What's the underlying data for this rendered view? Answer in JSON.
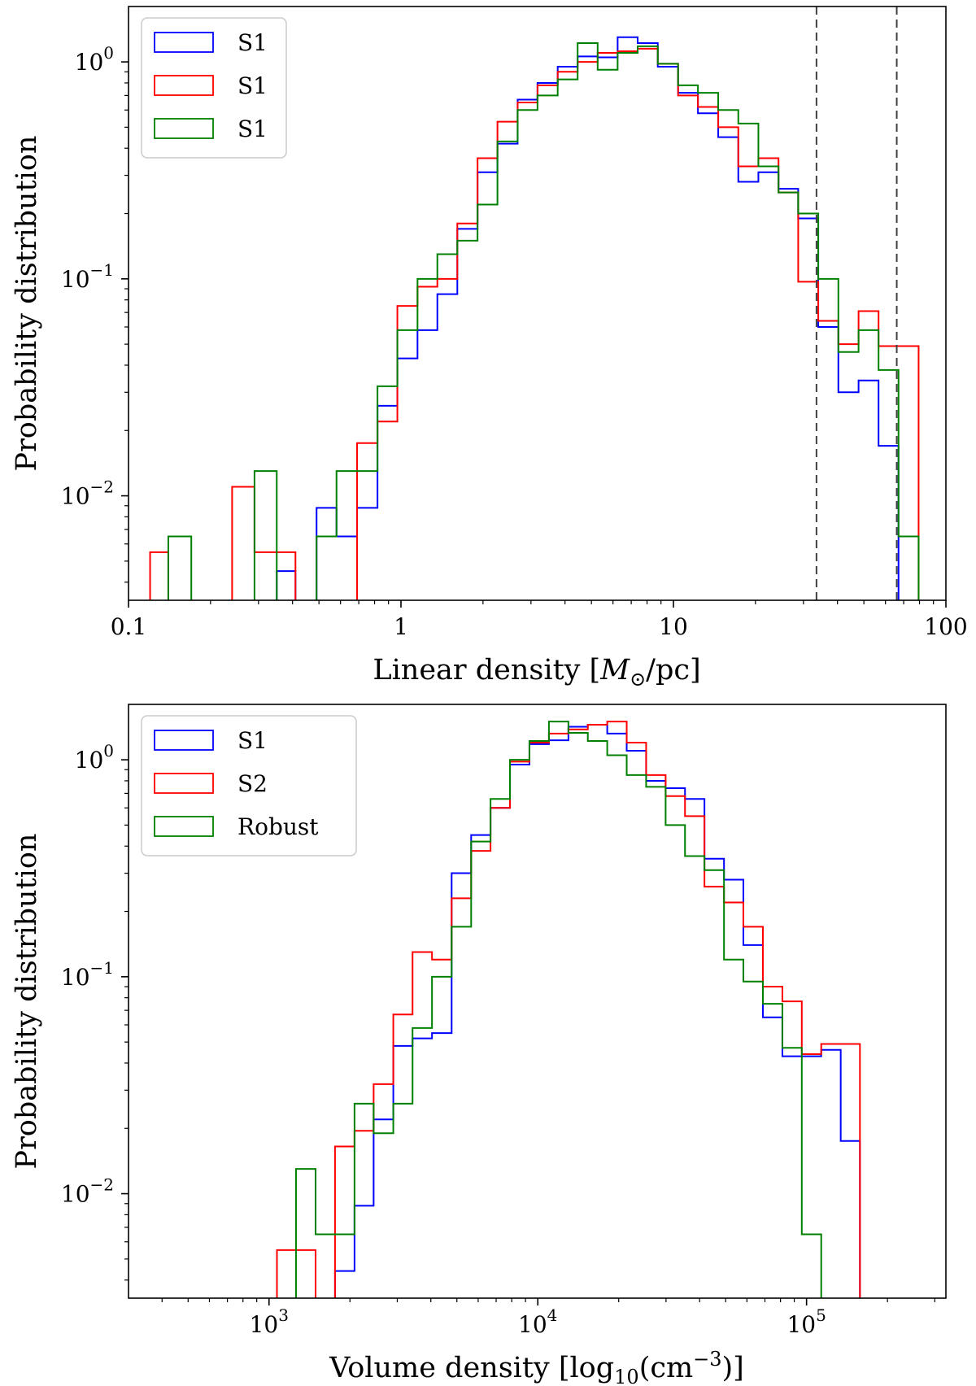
{
  "chart_data": [
    {
      "type": "histogram",
      "title": "",
      "xlabel": "Linear density [M⊙/pc]",
      "xlabel_parts": {
        "main": "Linear density [",
        "symbol": "M",
        "sub": "⊙",
        "tail": "/pc]"
      },
      "ylabel": "Probability distribution",
      "xscale": "log",
      "yscale": "log",
      "xlim": [
        0.1,
        100
      ],
      "ylim": [
        0.0033,
        1.8
      ],
      "x_ticks": [
        {
          "value": 0.1,
          "label": "0.1"
        },
        {
          "value": 1,
          "label": "1"
        },
        {
          "value": 10,
          "label": "10"
        },
        {
          "value": 100,
          "label": "100"
        }
      ],
      "y_ticks": [
        {
          "value": 1,
          "base": "10",
          "exp": "0"
        },
        {
          "value": 0.1,
          "base": "10",
          "exp": "−1"
        },
        {
          "value": 0.01,
          "base": "10",
          "exp": "−2"
        }
      ],
      "vlines": [
        33.5,
        66
      ],
      "legend_position": "upper-left",
      "series": [
        {
          "name": "S1",
          "color": "#0000ff",
          "edges": [
            0.12,
            0.14,
            0.17,
            0.2,
            0.24,
            0.29,
            0.35,
            0.41,
            0.49,
            0.58,
            0.69,
            0.82,
            0.97,
            1.15,
            1.36,
            1.61,
            1.91,
            2.26,
            2.68,
            3.17,
            3.76,
            4.45,
            5.27,
            6.24,
            7.39,
            8.76,
            10.4,
            12.3,
            14.6,
            17.3,
            20.5,
            24.3,
            28.7,
            34.0,
            40.3,
            47.8,
            56.6,
            67.0,
            79.4,
            88
          ],
          "values": [
            0,
            0,
            0,
            0,
            0,
            0,
            0.0045,
            0,
            0.0088,
            0.0065,
            0.0088,
            0.026,
            0.043,
            0.058,
            0.085,
            0.17,
            0.31,
            0.42,
            0.67,
            0.8,
            0.95,
            1.06,
            1.05,
            1.3,
            1.22,
            0.95,
            0.72,
            0.58,
            0.45,
            0.28,
            0.31,
            0.26,
            0.19,
            0.06,
            0.03,
            0.034,
            0.017,
            0,
            0
          ]
        },
        {
          "name": "S1",
          "color": "#ff0000",
          "edges": [
            0.12,
            0.14,
            0.17,
            0.2,
            0.24,
            0.29,
            0.35,
            0.41,
            0.49,
            0.58,
            0.69,
            0.82,
            0.97,
            1.15,
            1.36,
            1.61,
            1.91,
            2.26,
            2.68,
            3.17,
            3.76,
            4.45,
            5.27,
            6.24,
            7.39,
            8.76,
            10.4,
            12.3,
            14.6,
            17.3,
            20.5,
            24.3,
            28.7,
            34.0,
            40.3,
            47.8,
            56.6,
            67.0,
            79.4,
            88
          ],
          "values": [
            0.0055,
            0,
            0,
            0,
            0.011,
            0.0055,
            0.0055,
            0,
            0,
            0,
            0.0175,
            0.022,
            0.075,
            0.092,
            0.1,
            0.18,
            0.36,
            0.53,
            0.65,
            0.78,
            0.9,
            1.0,
            1.1,
            1.12,
            1.15,
            0.98,
            0.7,
            0.62,
            0.5,
            0.33,
            0.36,
            0.25,
            0.097,
            0.064,
            0.05,
            0.071,
            0.049,
            0.049,
            0
          ]
        },
        {
          "name": "S1",
          "color": "#008000",
          "edges": [
            0.12,
            0.14,
            0.17,
            0.2,
            0.24,
            0.29,
            0.35,
            0.41,
            0.49,
            0.58,
            0.69,
            0.82,
            0.97,
            1.15,
            1.36,
            1.61,
            1.91,
            2.26,
            2.68,
            3.17,
            3.76,
            4.45,
            5.27,
            6.24,
            7.39,
            8.76,
            10.4,
            12.3,
            14.6,
            17.3,
            20.5,
            24.3,
            28.7,
            34.0,
            40.3,
            47.8,
            56.6,
            67.0,
            79.4,
            88
          ],
          "values": [
            0,
            0.0065,
            0,
            0,
            0,
            0.013,
            0,
            0,
            0.0065,
            0.013,
            0.013,
            0.032,
            0.058,
            0.1,
            0.13,
            0.15,
            0.22,
            0.43,
            0.6,
            0.7,
            0.83,
            1.22,
            0.92,
            1.1,
            1.18,
            0.98,
            0.78,
            0.72,
            0.6,
            0.52,
            0.33,
            0.25,
            0.2,
            0.1,
            0.046,
            0.058,
            0.038,
            0.0065,
            0
          ]
        }
      ]
    },
    {
      "type": "histogram",
      "title": "",
      "xlabel": "Volume density [log10(cm−3)]",
      "xlabel_parts": {
        "main": "Volume density [log",
        "sub": "10",
        "mid": "(cm",
        "sup": "−3",
        "tail": ")]"
      },
      "ylabel": "Probability distribution",
      "xscale": "log",
      "yscale": "log",
      "xlim": [
        300,
        330000
      ],
      "ylim": [
        0.0033,
        1.8
      ],
      "x_ticks": [
        {
          "value": 1000,
          "base": "10",
          "exp": "3"
        },
        {
          "value": 10000,
          "base": "10",
          "exp": "4"
        },
        {
          "value": 100000,
          "base": "10",
          "exp": "5"
        }
      ],
      "y_ticks": [
        {
          "value": 1,
          "base": "10",
          "exp": "0"
        },
        {
          "value": 0.1,
          "base": "10",
          "exp": "−1"
        },
        {
          "value": 0.01,
          "base": "10",
          "exp": "−2"
        }
      ],
      "vlines": [],
      "legend_position": "upper-left",
      "series": [
        {
          "name": "S1",
          "color": "#0000ff",
          "edges": [
            1070,
            1260,
            1490,
            1760,
            2080,
            2450,
            2900,
            3420,
            4040,
            4780,
            5650,
            6670,
            7880,
            9310,
            11000,
            13000,
            15350,
            18130,
            21420,
            25300,
            29900,
            35300,
            41700,
            49300,
            58200,
            68800,
            81300,
            96000,
            113400,
            134000,
            158000,
            187000
          ],
          "values": [
            0,
            0,
            0,
            0.0044,
            0.0088,
            0.022,
            0.048,
            0.052,
            0.055,
            0.3,
            0.45,
            0.6,
            0.95,
            1.18,
            1.23,
            1.42,
            1.45,
            1.32,
            1.1,
            0.8,
            0.74,
            0.66,
            0.35,
            0.28,
            0.14,
            0.065,
            0.043,
            0.043,
            0.046,
            0.0175,
            0
          ]
        },
        {
          "name": "S2",
          "color": "#ff0000",
          "edges": [
            1070,
            1260,
            1490,
            1760,
            2080,
            2450,
            2900,
            3420,
            4040,
            4780,
            5650,
            6670,
            7880,
            9310,
            11000,
            13000,
            15350,
            18130,
            21420,
            25300,
            29900,
            35300,
            41700,
            49300,
            58200,
            68800,
            81300,
            96000,
            113400,
            134000,
            158000,
            187000
          ],
          "values": [
            0.0055,
            0.0055,
            0,
            0.0165,
            0.0195,
            0.032,
            0.067,
            0.13,
            0.12,
            0.23,
            0.38,
            0.6,
            0.98,
            1.2,
            1.32,
            1.38,
            1.45,
            1.5,
            1.2,
            0.85,
            0.68,
            0.55,
            0.26,
            0.22,
            0.17,
            0.09,
            0.077,
            0.044,
            0.049,
            0.049,
            0
          ]
        },
        {
          "name": "Robust",
          "color": "#008000",
          "edges": [
            1070,
            1260,
            1490,
            1760,
            2080,
            2450,
            2900,
            3420,
            4040,
            4780,
            5650,
            6670,
            7880,
            9310,
            11000,
            13000,
            15350,
            18130,
            21420,
            25300,
            29900,
            35300,
            41700,
            49300,
            58200,
            68800,
            81300,
            96000,
            113400,
            134000,
            158000,
            187000
          ],
          "values": [
            0,
            0.013,
            0.0065,
            0.0065,
            0.026,
            0.019,
            0.026,
            0.058,
            0.1,
            0.17,
            0.42,
            0.66,
            1.0,
            1.22,
            1.5,
            1.33,
            1.22,
            1.05,
            0.85,
            0.75,
            0.5,
            0.36,
            0.31,
            0.12,
            0.095,
            0.075,
            0.047,
            0.0065,
            0,
            0,
            0
          ]
        }
      ]
    }
  ]
}
